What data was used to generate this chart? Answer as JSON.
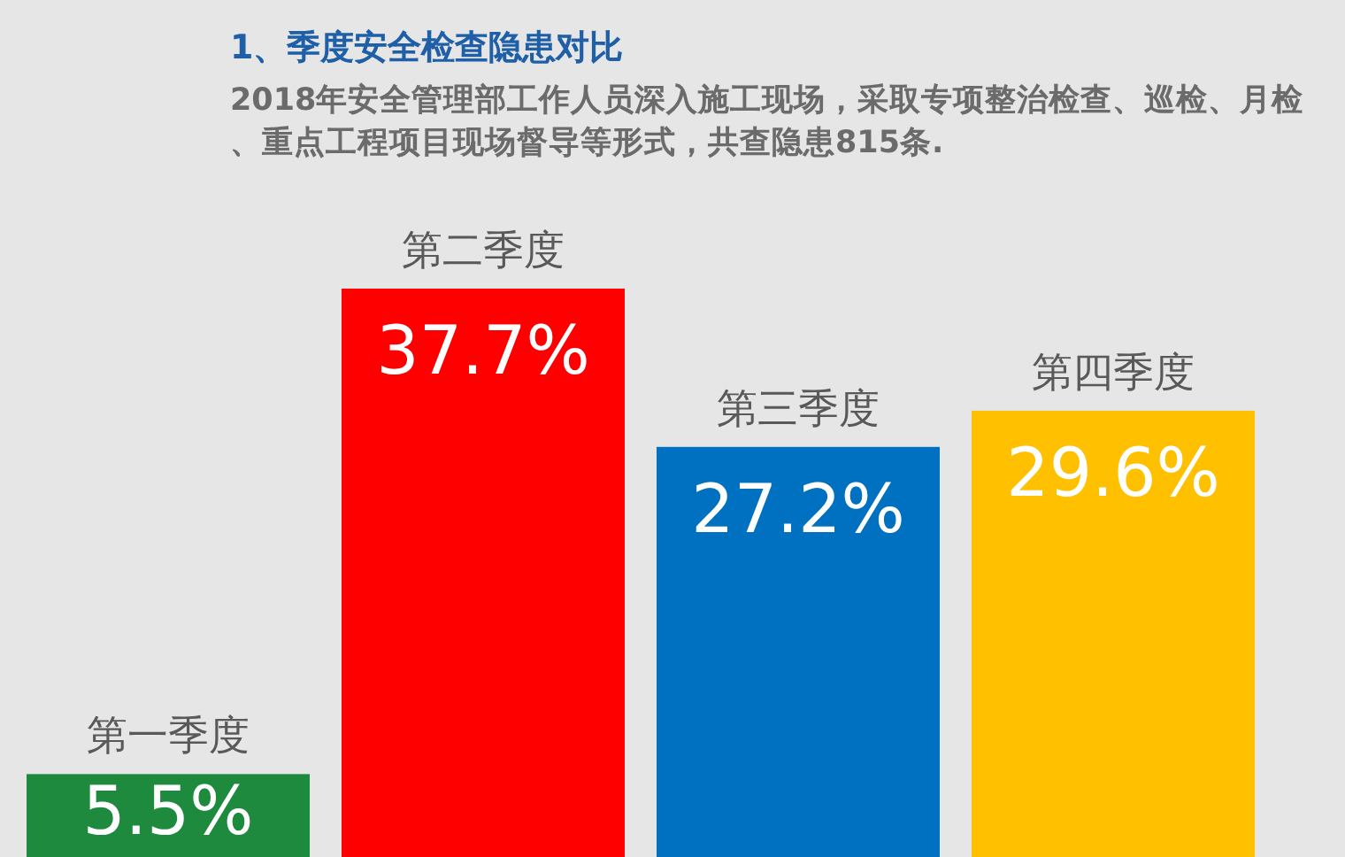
{
  "chart_data": {
    "type": "bar",
    "title": "1、季度安全检查隐患对比",
    "subtitle": "2018年安全管理部工作人员深入施工现场，采取专项整治检查、巡检、月检、重点工程项目现场督导等形式，共查隐患815条.",
    "categories": [
      "第一季度",
      "第二季度",
      "第三季度",
      "第四季度"
    ],
    "values": [
      5.5,
      37.7,
      27.2,
      29.6
    ],
    "value_labels": [
      "5.5%",
      "37.7%",
      "27.2%",
      "29.6%"
    ],
    "colors": [
      "#1e8a3e",
      "#ff0000",
      "#0070c0",
      "#ffc000"
    ]
  }
}
